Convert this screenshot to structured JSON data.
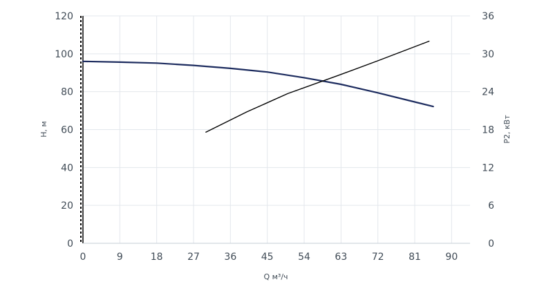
{
  "chart_data": {
    "type": "line",
    "xlabel": "Q м³/ч",
    "ylabel_left": "H, м",
    "ylabel_right": "P2, кВт",
    "xlim": [
      0,
      94.5
    ],
    "ylim_left": [
      0,
      120
    ],
    "ylim_right": [
      0,
      36
    ],
    "x_ticks": [
      "0",
      "9",
      "18",
      "27",
      "36",
      "45",
      "54",
      "63",
      "72",
      "81",
      "90"
    ],
    "y_ticks_left": [
      "0",
      "20",
      "40",
      "60",
      "80",
      "100",
      "120"
    ],
    "y_ticks_right": [
      "0",
      "6",
      "12",
      "18",
      "24",
      "30",
      "36"
    ],
    "grid": true,
    "series": [
      {
        "axis": "left",
        "color": "#1c2b5e",
        "x": [
          0,
          9,
          18,
          27,
          36,
          45,
          54,
          63,
          72,
          81,
          85.5
        ],
        "y": [
          96.0,
          95.6,
          95.1,
          93.9,
          92.3,
          90.4,
          87.4,
          83.9,
          79.4,
          74.6,
          72.2
        ]
      },
      {
        "axis": "right",
        "color": "#000000",
        "x": [
          30,
          40,
          50,
          62,
          72,
          84.5
        ],
        "y": [
          17.6,
          20.8,
          23.7,
          26.5,
          28.9,
          32.0
        ]
      }
    ]
  }
}
